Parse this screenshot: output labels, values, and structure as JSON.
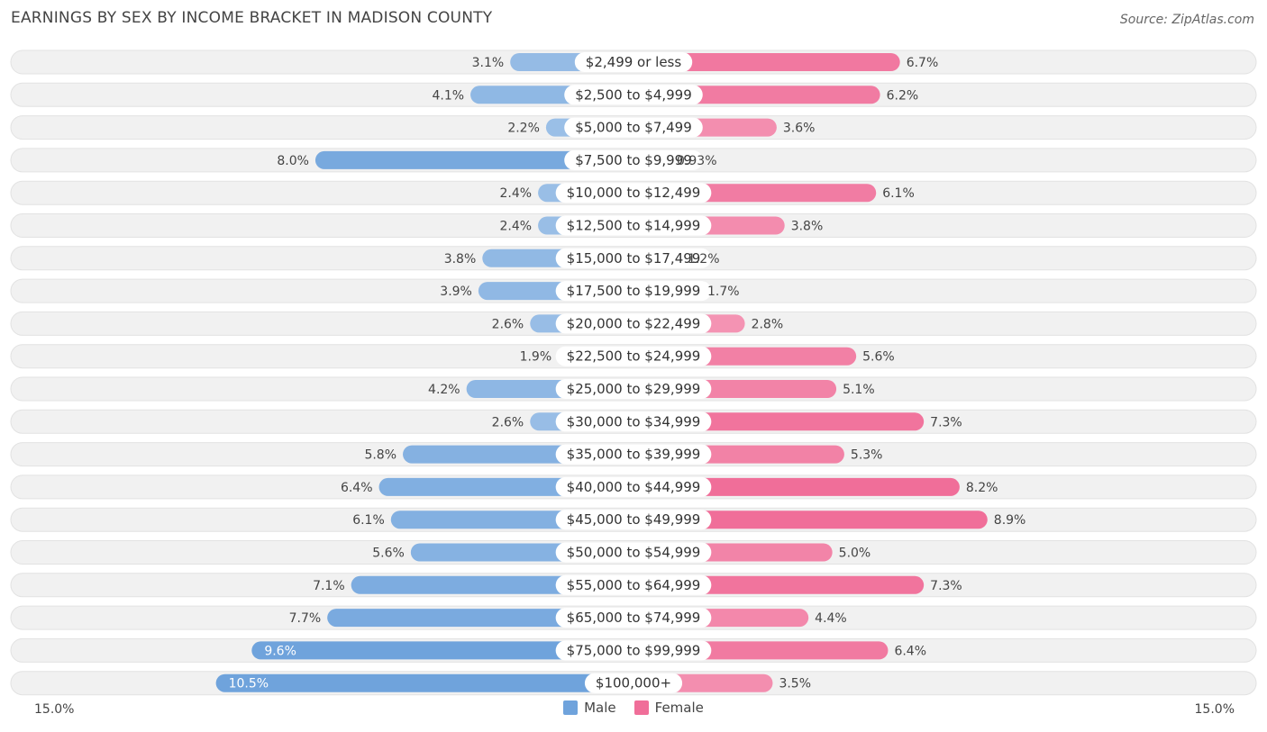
{
  "title": "EARNINGS BY SEX BY INCOME BRACKET IN MADISON COUNTY",
  "source": "Source: ZipAtlas.com",
  "colors": {
    "male": "#6fa3dc",
    "female": "#f06e99",
    "male_light": "#a7c7ea",
    "female_light": "#f6a7c0",
    "row_bg": "#f1f1f1"
  },
  "chart_data": {
    "type": "bar",
    "title": "EARNINGS BY SEX BY INCOME BRACKET IN MADISON COUNTY",
    "categories": [
      "$2,499 or less",
      "$2,500 to $4,999",
      "$5,000 to $7,499",
      "$7,500 to $9,999",
      "$10,000 to $12,499",
      "$12,500 to $14,999",
      "$15,000 to $17,499",
      "$17,500 to $19,999",
      "$20,000 to $22,499",
      "$22,500 to $24,999",
      "$25,000 to $29,999",
      "$30,000 to $34,999",
      "$35,000 to $39,999",
      "$40,000 to $44,999",
      "$45,000 to $49,999",
      "$50,000 to $54,999",
      "$55,000 to $64,999",
      "$65,000 to $74,999",
      "$75,000 to $99,999",
      "$100,000+"
    ],
    "series": [
      {
        "name": "Male",
        "values": [
          3.1,
          4.1,
          2.2,
          8.0,
          2.4,
          2.4,
          3.8,
          3.9,
          2.6,
          1.9,
          4.2,
          2.6,
          5.8,
          6.4,
          6.1,
          5.6,
          7.1,
          7.7,
          9.6,
          10.5
        ],
        "labels": [
          "3.1%",
          "4.1%",
          "2.2%",
          "8.0%",
          "2.4%",
          "2.4%",
          "3.8%",
          "3.9%",
          "2.6%",
          "1.9%",
          "4.2%",
          "2.6%",
          "5.8%",
          "6.4%",
          "6.1%",
          "5.6%",
          "7.1%",
          "7.7%",
          "9.6%",
          "10.5%"
        ]
      },
      {
        "name": "Female",
        "values": [
          6.7,
          6.2,
          3.6,
          0.93,
          6.1,
          3.8,
          1.2,
          1.7,
          2.8,
          5.6,
          5.1,
          7.3,
          5.3,
          8.2,
          8.9,
          5.0,
          7.3,
          4.4,
          6.4,
          3.5
        ],
        "labels": [
          "6.7%",
          "6.2%",
          "3.6%",
          "0.93%",
          "6.1%",
          "3.8%",
          "1.2%",
          "1.7%",
          "2.8%",
          "5.6%",
          "5.1%",
          "7.3%",
          "5.3%",
          "8.2%",
          "8.9%",
          "5.0%",
          "7.3%",
          "4.4%",
          "6.4%",
          "3.5%"
        ]
      }
    ],
    "xlim": [
      -15.0,
      15.0
    ],
    "axis_left_label": "15.0%",
    "axis_right_label": "15.0%",
    "legend": [
      "Male",
      "Female"
    ],
    "legend_position": "bottom-center"
  }
}
